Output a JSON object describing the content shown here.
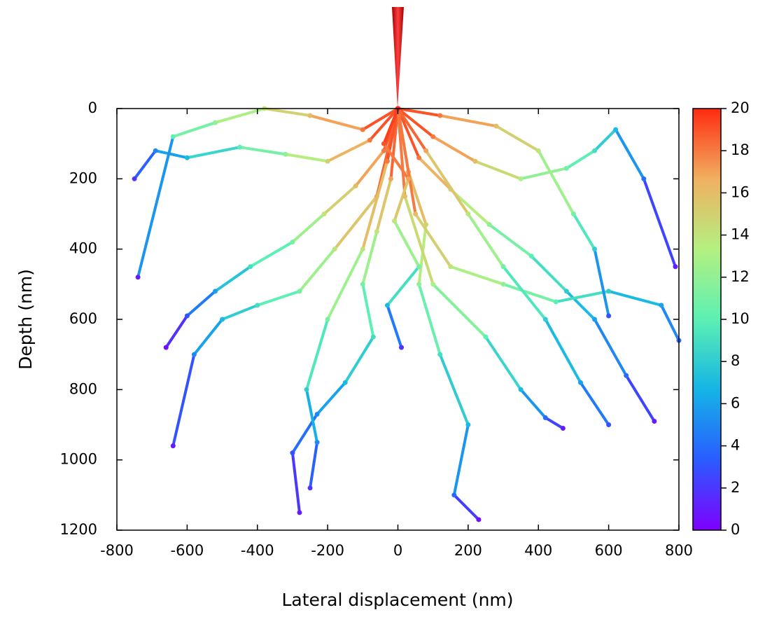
{
  "chart_data": {
    "type": "trajectory",
    "x_label": "Lateral displacement (nm)",
    "y_label": "Depth (nm)",
    "xlim": [
      -800,
      800
    ],
    "xticks": [
      -800,
      -600,
      -400,
      -200,
      0,
      200,
      400,
      600,
      800
    ],
    "ylim": [
      1200,
      0
    ],
    "yticks": [
      0,
      200,
      400,
      600,
      800,
      1000,
      1200
    ],
    "clim": [
      0,
      20
    ],
    "cticks": [
      0,
      2,
      4,
      6,
      8,
      10,
      12,
      14,
      16,
      18,
      20
    ],
    "colormap": [
      "#7f00ff",
      "#2a5cff",
      "#14b4e6",
      "#5cf0b4",
      "#b4f080",
      "#f0b060",
      "#ff2a10"
    ],
    "series": [
      {
        "x": [
          0,
          -40,
          -120,
          -210,
          -300,
          -420,
          -520,
          -600,
          -660
        ],
        "values": [
          0,
          120,
          220,
          300,
          380,
          450,
          520,
          590,
          680
        ],
        "energy": [
          20,
          18,
          16,
          14,
          11,
          9,
          6,
          3,
          0.5
        ]
      },
      {
        "x": [
          0,
          60,
          150,
          260,
          380,
          480,
          560,
          650,
          730
        ],
        "values": [
          0,
          140,
          230,
          330,
          420,
          520,
          600,
          760,
          890
        ],
        "energy": [
          20,
          18,
          15,
          12,
          10,
          8,
          6,
          4,
          1
        ]
      },
      {
        "x": [
          0,
          -20,
          -60,
          -100,
          -70,
          -150,
          -230,
          -300,
          -280
        ],
        "values": [
          0,
          200,
          350,
          500,
          650,
          780,
          870,
          980,
          1150
        ],
        "energy": [
          20,
          17,
          14,
          11,
          9,
          7,
          5,
          3,
          1
        ]
      },
      {
        "x": [
          0,
          30,
          80,
          60,
          120,
          200,
          160,
          230
        ],
        "values": [
          0,
          180,
          330,
          500,
          700,
          900,
          1100,
          1170
        ],
        "energy": [
          20,
          17,
          15,
          12,
          9,
          7,
          4,
          0.5
        ]
      },
      {
        "x": [
          0,
          -80,
          -200,
          -320,
          -450,
          -600,
          -690,
          -750
        ],
        "values": [
          0,
          90,
          150,
          130,
          110,
          140,
          120,
          200
        ],
        "energy": [
          20,
          18,
          15,
          12,
          10,
          7,
          5,
          2
        ]
      },
      {
        "x": [
          0,
          100,
          220,
          350,
          480,
          560,
          620,
          700,
          790
        ],
        "values": [
          0,
          80,
          150,
          200,
          170,
          120,
          60,
          200,
          450
        ],
        "energy": [
          20,
          18,
          16,
          13,
          11,
          9,
          7,
          4,
          1
        ]
      },
      {
        "x": [
          0,
          -60,
          -180,
          -280,
          -400,
          -500,
          -580,
          -640
        ],
        "values": [
          0,
          250,
          400,
          520,
          560,
          600,
          700,
          960
        ],
        "energy": [
          20,
          17,
          14,
          11,
          9,
          7,
          5,
          1
        ]
      },
      {
        "x": [
          0,
          50,
          150,
          300,
          450,
          600,
          750,
          800
        ],
        "values": [
          0,
          300,
          450,
          500,
          550,
          520,
          560,
          660
        ],
        "energy": [
          20,
          16,
          14,
          12,
          10,
          8,
          6,
          4
        ]
      },
      {
        "x": [
          0,
          -30,
          -100,
          -200,
          -260,
          -230,
          -250
        ],
        "values": [
          0,
          150,
          400,
          600,
          800,
          950,
          1080
        ],
        "energy": [
          20,
          18,
          14,
          11,
          8,
          5,
          2
        ]
      },
      {
        "x": [
          0,
          20,
          100,
          250,
          350,
          420,
          470
        ],
        "values": [
          0,
          250,
          500,
          650,
          800,
          880,
          910
        ],
        "energy": [
          20,
          16,
          13,
          10,
          7,
          4,
          1
        ]
      },
      {
        "x": [
          0,
          -100,
          -250,
          -380,
          -520,
          -640,
          -740
        ],
        "values": [
          0,
          60,
          20,
          0,
          40,
          80,
          480
        ],
        "energy": [
          20,
          18,
          16,
          14,
          12,
          10,
          1
        ]
      },
      {
        "x": [
          0,
          120,
          280,
          400,
          500,
          560,
          600
        ],
        "values": [
          0,
          20,
          50,
          120,
          300,
          400,
          590
        ],
        "energy": [
          20,
          18,
          16,
          14,
          11,
          8,
          3
        ]
      },
      {
        "x": [
          0,
          -40,
          30,
          -10,
          60,
          -30,
          10
        ],
        "values": [
          0,
          100,
          200,
          320,
          450,
          560,
          680
        ],
        "energy": [
          20,
          19,
          17,
          14,
          11,
          7,
          2
        ]
      },
      {
        "x": [
          0,
          80,
          200,
          300,
          420,
          520,
          600
        ],
        "values": [
          0,
          120,
          300,
          450,
          600,
          780,
          900
        ],
        "energy": [
          20,
          17,
          14,
          11,
          8,
          6,
          3
        ]
      }
    ]
  }
}
